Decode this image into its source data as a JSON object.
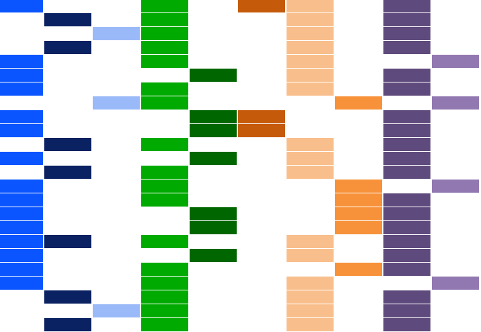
{
  "grid": {
    "colors": [
      "#0a55ff",
      "#0a2162",
      "#9ab9f8",
      "#00aa00",
      "#006600",
      "#c55a0b",
      "#f8bf8c",
      "#f7923a",
      "#5f4a7d",
      "#9278b1"
    ],
    "rows": [
      [
        1,
        0,
        0,
        1,
        0,
        1,
        1,
        0,
        1,
        0
      ],
      [
        0,
        1,
        0,
        1,
        0,
        0,
        1,
        0,
        1,
        0
      ],
      [
        0,
        0,
        1,
        1,
        0,
        0,
        1,
        0,
        1,
        0
      ],
      [
        0,
        1,
        0,
        1,
        0,
        0,
        1,
        0,
        1,
        0
      ],
      [
        1,
        0,
        0,
        1,
        0,
        0,
        1,
        0,
        0,
        1
      ],
      [
        1,
        0,
        0,
        0,
        1,
        0,
        1,
        0,
        1,
        0
      ],
      [
        1,
        0,
        0,
        1,
        0,
        0,
        1,
        0,
        1,
        0
      ],
      [
        0,
        0,
        1,
        1,
        0,
        0,
        0,
        1,
        0,
        1
      ],
      [
        1,
        0,
        0,
        0,
        1,
        1,
        0,
        0,
        1,
        0
      ],
      [
        1,
        0,
        0,
        0,
        1,
        1,
        0,
        0,
        1,
        0
      ],
      [
        0,
        1,
        0,
        1,
        0,
        0,
        1,
        0,
        1,
        0
      ],
      [
        1,
        0,
        0,
        0,
        1,
        0,
        1,
        0,
        1,
        0
      ],
      [
        0,
        1,
        0,
        1,
        0,
        0,
        1,
        0,
        1,
        0
      ],
      [
        1,
        0,
        0,
        1,
        0,
        0,
        0,
        1,
        0,
        1
      ],
      [
        1,
        0,
        0,
        1,
        0,
        0,
        0,
        1,
        1,
        0
      ],
      [
        1,
        0,
        0,
        0,
        1,
        0,
        0,
        1,
        1,
        0
      ],
      [
        1,
        0,
        0,
        0,
        1,
        0,
        0,
        1,
        1,
        0
      ],
      [
        1,
        1,
        0,
        1,
        0,
        0,
        1,
        0,
        1,
        0
      ],
      [
        1,
        0,
        0,
        0,
        1,
        0,
        1,
        0,
        1,
        0
      ],
      [
        1,
        0,
        0,
        1,
        0,
        0,
        0,
        1,
        1,
        0
      ],
      [
        1,
        0,
        0,
        1,
        0,
        0,
        1,
        0,
        0,
        1
      ],
      [
        0,
        1,
        0,
        1,
        0,
        0,
        1,
        0,
        1,
        0
      ],
      [
        0,
        0,
        1,
        1,
        0,
        0,
        1,
        0,
        1,
        0
      ],
      [
        0,
        1,
        0,
        1,
        0,
        0,
        1,
        0,
        1,
        0
      ]
    ]
  }
}
